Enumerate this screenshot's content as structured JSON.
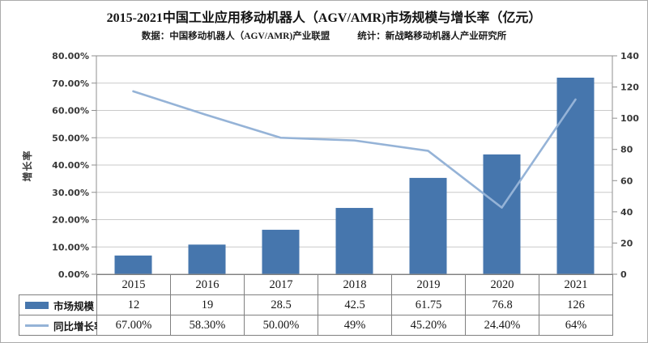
{
  "header": {
    "title": "2015-2021中国工业应用移动机器人（AGV/AMR)市场规模与增长率（亿元）",
    "source_left": "数据：中国移动机器人（AGV/AMR)产业联盟",
    "source_right": "统计：新战略移动机器人产业研究所"
  },
  "chart_data": {
    "type": "combo-bar-line",
    "categories": [
      "2015",
      "2016",
      "2017",
      "2018",
      "2019",
      "2020",
      "2021"
    ],
    "series": [
      {
        "name": "市场规模",
        "type": "bar",
        "axis": "right",
        "color": "#4676ad",
        "values": [
          12,
          19,
          28.5,
          42.5,
          61.75,
          76.8,
          126
        ]
      },
      {
        "name": "同比增长率",
        "type": "line",
        "axis": "left",
        "unit": "%",
        "color": "#95b3d7",
        "values": [
          67.0,
          58.3,
          50.0,
          49.0,
          45.2,
          24.4,
          64.0
        ]
      }
    ],
    "left_axis": {
      "title": "增长率",
      "min": 0,
      "max": 80,
      "step": 10,
      "tick_labels_top_to_bottom": [
        "80.00%",
        "70.00%",
        "60.00%",
        "50.00%",
        "40.00%",
        "30.00%",
        "20.00%",
        "10.00%",
        "0.00%"
      ]
    },
    "right_axis": {
      "min": 0,
      "max": 140,
      "step": 20,
      "tick_labels_top_to_bottom": [
        "140",
        "120",
        "100",
        "80",
        "60",
        "40",
        "20",
        "0"
      ]
    },
    "grid": true,
    "legend_position": "table-row-headers"
  },
  "table": {
    "rows": [
      {
        "label": "市场规模",
        "swatch": "bar",
        "values": [
          "12",
          "19",
          "28.5",
          "42.5",
          "61.75",
          "76.8",
          "126"
        ]
      },
      {
        "label": "同比增长率",
        "swatch": "line",
        "values": [
          "67.00%",
          "58.30%",
          "50.00%",
          "49%",
          "45.20%",
          "24.40%",
          "64%"
        ]
      }
    ]
  },
  "colors": {
    "bar": "#4676ad",
    "line": "#95b3d7",
    "grid": "#c9c9c9",
    "axis": "#8f8f8f",
    "table_border": "#808080",
    "tick_text": "#383838",
    "text": "#161616"
  }
}
